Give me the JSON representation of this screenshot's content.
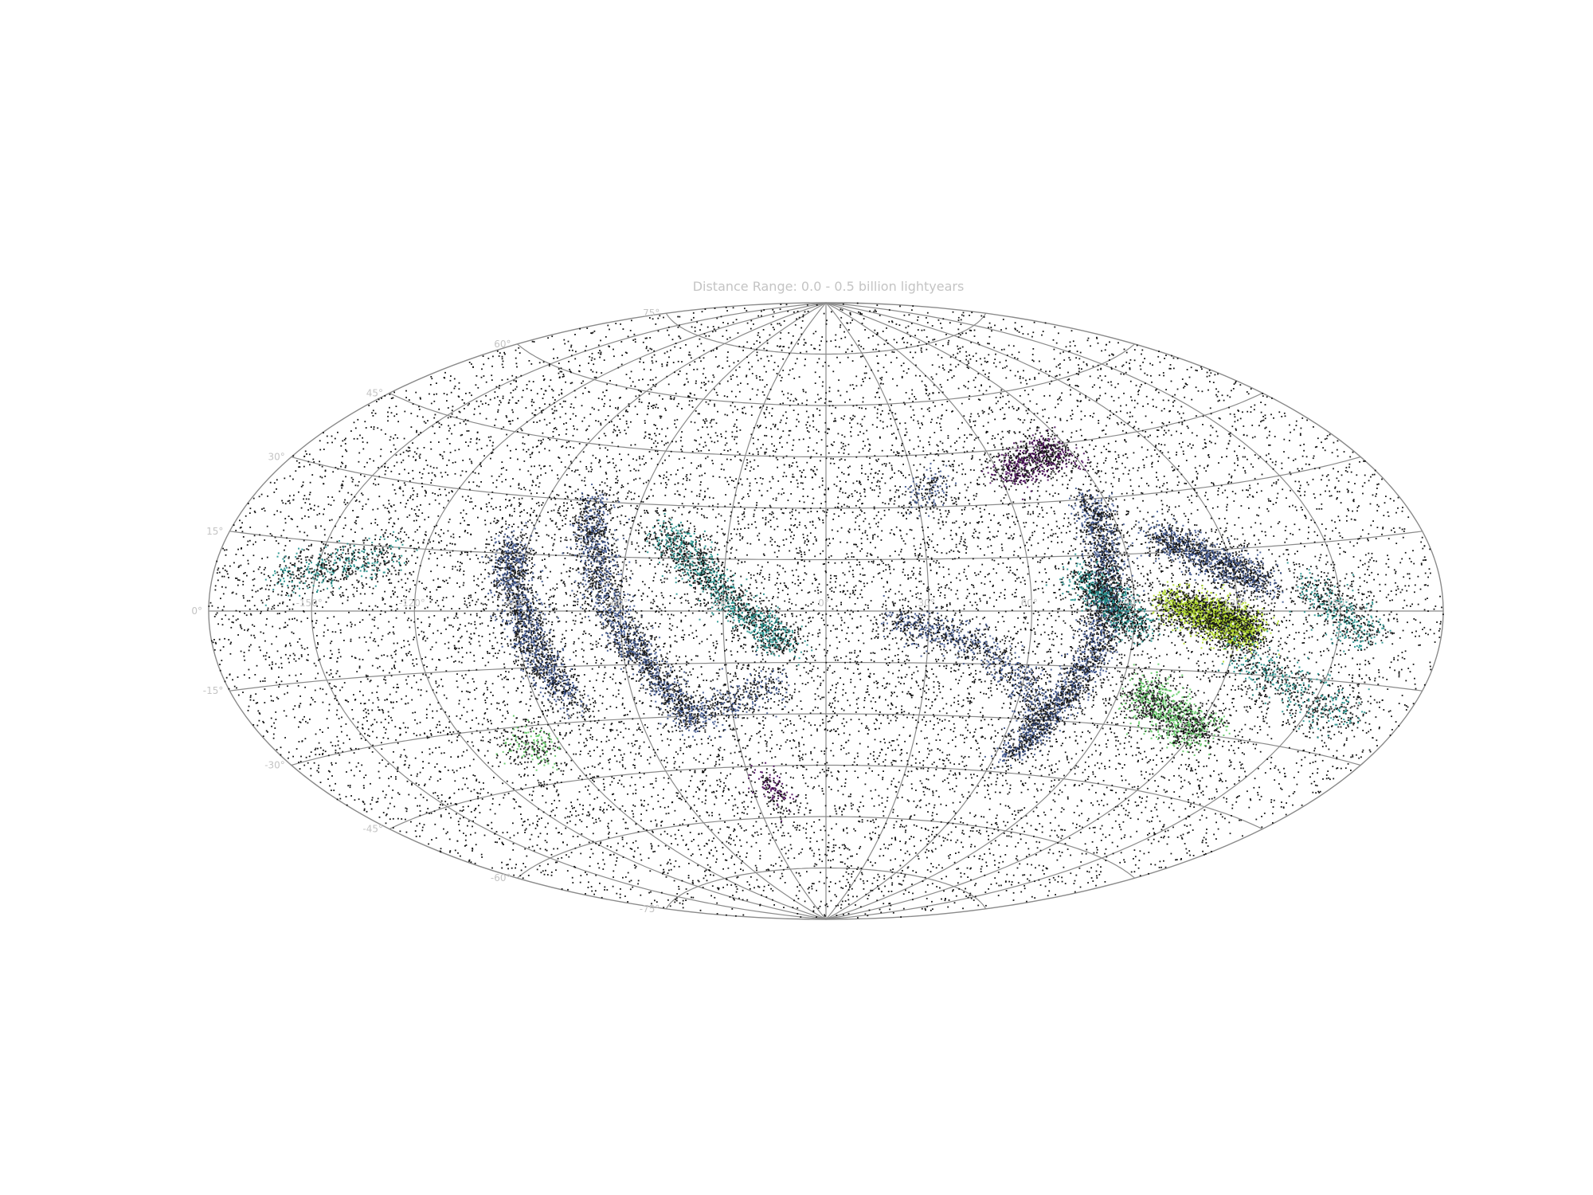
{
  "chart_data": {
    "type": "scatter",
    "projection": "aitoff",
    "title": "Distance Range: 0.0 - 0.5 billion lightyears",
    "xlabel": "",
    "ylabel": "",
    "grid": true,
    "xlim_deg": [
      -180,
      180
    ],
    "ylim_deg": [
      -90,
      90
    ],
    "latitude_ticks": [
      "75°",
      "60°",
      "45°",
      "30°",
      "15°",
      "0°",
      "-15°",
      "-30°",
      "-45°",
      "-60°",
      "-75°"
    ],
    "longitude_ticks": [
      "-150°",
      "-120°",
      "-90°",
      "-60°",
      "-30°",
      "0°",
      "30°",
      "60°",
      "90°",
      "120°",
      "150°"
    ],
    "colormap": [
      "#440154",
      "#3b528b",
      "#21918c",
      "#5ec962",
      "#b5de2b"
    ],
    "point_color_background": "#111111",
    "background_field": {
      "lon_range": [
        -180,
        180
      ],
      "lat_range": [
        -90,
        90
      ],
      "approx_points": 14000,
      "distribution": "uniform on sphere"
    },
    "structures": [
      {
        "lon": [
          -160,
          -150,
          -140,
          -125
        ],
        "lat": [
          7,
          9,
          11,
          14
        ],
        "points": 500,
        "color_index": 2
      },
      {
        "lon": [
          -95,
          -92,
          -88,
          -85,
          -80
        ],
        "lat": [
          18,
          8,
          -3,
          -13,
          -25
        ],
        "points": 1600,
        "color_index": 1
      },
      {
        "lon": [
          -105,
          -100,
          -95
        ],
        "lat": [
          -35,
          -37,
          -33
        ],
        "points": 200,
        "color_index": 3
      },
      {
        "lon": [
          -75,
          -70,
          -65,
          -58,
          -50,
          -43
        ],
        "lat": [
          30,
          18,
          5,
          -8,
          -20,
          -32
        ],
        "points": 1800,
        "color_index": 1
      },
      {
        "lon": [
          -50,
          -40,
          -30,
          -20,
          -12
        ],
        "lat": [
          22,
          15,
          5,
          -3,
          -10
        ],
        "points": 1400,
        "color_index": 2
      },
      {
        "lon": [
          -45,
          -35,
          -25,
          -15
        ],
        "lat": [
          -30,
          -28,
          -25,
          -20
        ],
        "points": 400,
        "color_index": 1
      },
      {
        "lon": [
          -25,
          -22,
          -18
        ],
        "lat": [
          -48,
          -52,
          -56
        ],
        "points": 150,
        "color_index": 0
      },
      {
        "lon": [
          20,
          30,
          45,
          60,
          70
        ],
        "lat": [
          -3,
          -5,
          -10,
          -20,
          -30
        ],
        "points": 900,
        "color_index": 1
      },
      {
        "lon": [
          60,
          70,
          80,
          88
        ],
        "lat": [
          38,
          40,
          42,
          44
        ],
        "points": 700,
        "color_index": 0
      },
      {
        "lon": [
          85,
          84,
          82,
          78,
          72,
          65
        ],
        "lat": [
          30,
          15,
          0,
          -15,
          -28,
          -40
        ],
        "points": 2400,
        "color_index": 1
      },
      {
        "lon": [
          75,
          80,
          86,
          92
        ],
        "lat": [
          10,
          5,
          0,
          -5
        ],
        "points": 900,
        "color_index": 2
      },
      {
        "lon": [
          100,
          108,
          115,
          120,
          125
        ],
        "lat": [
          2,
          0,
          -2,
          -4,
          -5
        ],
        "points": 2600,
        "color_index": 4
      },
      {
        "lon": [
          100,
          110,
          120,
          130
        ],
        "lat": [
          20,
          15,
          10,
          6
        ],
        "points": 1200,
        "color_index": 1
      },
      {
        "lon": [
          95,
          105,
          115,
          125
        ],
        "lat": [
          -20,
          -25,
          -28,
          -30
        ],
        "points": 1100,
        "color_index": 3
      },
      {
        "lon": [
          120,
          135,
          150,
          165
        ],
        "lat": [
          -10,
          -15,
          -20,
          -22
        ],
        "points": 600,
        "color_index": 2
      },
      {
        "lon": [
          140,
          150,
          160
        ],
        "lat": [
          5,
          0,
          -5
        ],
        "points": 500,
        "color_index": 2
      },
      {
        "lon": [
          40,
          35,
          30
        ],
        "lat": [
          38,
          35,
          30
        ],
        "points": 150,
        "color_index": 1
      }
    ]
  }
}
